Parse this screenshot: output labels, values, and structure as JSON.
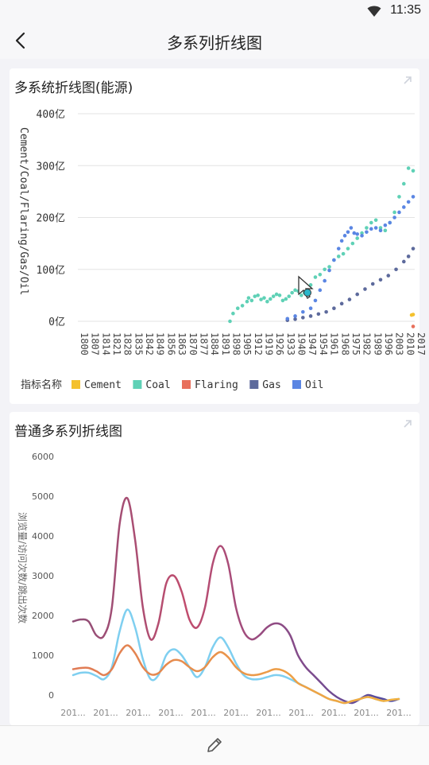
{
  "status_bar": {
    "time": "11:35"
  },
  "app_bar": {
    "title": "多系列折线图"
  },
  "chart_data": [
    {
      "type": "scatter",
      "title": "多系统折线图(能源)",
      "ylabel": "Cement/Coal/Flaring/Gas/Oil",
      "ylim": [
        0,
        400
      ],
      "yticks": [
        "0亿",
        "100亿",
        "200亿",
        "300亿",
        "400亿"
      ],
      "yticks_values": [
        0,
        100,
        200,
        300,
        400
      ],
      "x_ticks": [
        "1800",
        "1807",
        "1814",
        "1821",
        "1828",
        "1835",
        "1842",
        "1849",
        "1856",
        "1863",
        "1870",
        "1877",
        "1884",
        "1891",
        "1898",
        "1905",
        "1912",
        "1919",
        "1926",
        "1933",
        "1940",
        "1947",
        "1954",
        "1961",
        "1968",
        "1975",
        "1982",
        "1989",
        "1996",
        "2003",
        "2010",
        "2017"
      ],
      "xlim": [
        1800,
        2017
      ],
      "legend_title": "指标名称",
      "legend_position": "bottom-left",
      "colors": {
        "Cement": "#f4c12e",
        "Coal": "#5fd1b6",
        "Flaring": "#e8705c",
        "Gas": "#5d6a9c",
        "Oil": "#5b86e3"
      },
      "series": [
        {
          "name": "Cement",
          "x": [
            2015,
            2016
          ],
          "y": [
            12,
            13
          ]
        },
        {
          "name": "Coal",
          "x": [
            1898,
            1900,
            1903,
            1906,
            1909,
            1910,
            1912,
            1914,
            1916,
            1918,
            1920,
            1922,
            1924,
            1926,
            1928,
            1930,
            1932,
            1934,
            1936,
            1938,
            1940,
            1942,
            1944,
            1946,
            1948,
            1950,
            1953,
            1956,
            1959,
            1962,
            1965,
            1968,
            1971,
            1974,
            1977,
            1980,
            1983,
            1986,
            1989,
            1992,
            1995,
            1998,
            2001,
            2004,
            2007,
            2010,
            2013,
            2016
          ],
          "y": [
            0,
            15,
            25,
            30,
            38,
            45,
            40,
            48,
            50,
            42,
            45,
            38,
            43,
            48,
            52,
            50,
            40,
            43,
            48,
            55,
            60,
            58,
            50,
            55,
            65,
            70,
            85,
            90,
            100,
            105,
            118,
            125,
            130,
            140,
            150,
            160,
            170,
            180,
            190,
            195,
            180,
            175,
            190,
            210,
            240,
            265,
            295,
            290
          ]
        },
        {
          "name": "Flaring",
          "x": [
            2016
          ],
          "y": [
            -10
          ]
        },
        {
          "name": "Gas",
          "x": [
            1935,
            1940,
            1945,
            1950,
            1955,
            1960,
            1965,
            1970,
            1975,
            1980,
            1985,
            1990,
            1995,
            2000,
            2005,
            2010,
            2013,
            2016
          ],
          "y": [
            2,
            4,
            7,
            10,
            14,
            18,
            25,
            34,
            42,
            52,
            62,
            72,
            80,
            88,
            100,
            115,
            125,
            140
          ]
        },
        {
          "name": "Oil",
          "x": [
            1935,
            1940,
            1945,
            1950,
            1953,
            1956,
            1959,
            1962,
            1965,
            1968,
            1970,
            1972,
            1974,
            1976,
            1978,
            1980,
            1983,
            1986,
            1989,
            1992,
            1995,
            1998,
            2001,
            2004,
            2007,
            2010,
            2013,
            2016
          ],
          "y": [
            5,
            10,
            18,
            25,
            40,
            60,
            78,
            98,
            118,
            140,
            155,
            165,
            172,
            180,
            170,
            168,
            165,
            172,
            178,
            180,
            175,
            185,
            190,
            200,
            210,
            220,
            230,
            240
          ]
        }
      ]
    },
    {
      "type": "line",
      "title": "普通多系列折线图",
      "ylabel": "浏览量/访问次数/跳出次数",
      "ylim": [
        0,
        6000
      ],
      "yticks": [
        "0",
        "1000",
        "2000",
        "3000",
        "4000",
        "5000",
        "6000"
      ],
      "yticks_values": [
        0,
        1000,
        2000,
        3000,
        4000,
        5000,
        6000
      ],
      "categories": [
        "201...",
        "201...",
        "201...",
        "201...",
        "201...",
        "201...",
        "201...",
        "201...",
        "201...",
        "201...",
        "201...",
        "201...",
        "201...",
        "201...",
        "201...",
        "201...",
        "201...",
        "201...",
        "201...",
        "201...",
        "201...",
        "201...",
        "201...",
        "201...",
        "201...",
        "201...",
        "201...",
        "201...",
        "201...",
        "201...",
        "201...",
        "201...",
        "201...",
        "201...",
        "201...",
        "201...",
        "201...",
        "201...",
        "201...",
        "201...",
        "201...",
        "201...",
        "201..."
      ],
      "x_tick_labels": [
        "201...",
        "201...",
        "201...",
        "201...",
        "201...",
        "201...",
        "201...",
        "201...",
        "201...",
        "201...",
        "201..."
      ],
      "series": [
        {
          "name": "浏览量",
          "color_start": "#c14d6e",
          "color_end": "#4b4aa3",
          "values": [
            1850,
            1900,
            1850,
            1500,
            1500,
            2200,
            4300,
            4950,
            3900,
            2200,
            1400,
            1800,
            2800,
            3000,
            2600,
            1900,
            1700,
            2200,
            3300,
            3750,
            3300,
            2200,
            1600,
            1400,
            1500,
            1700,
            1800,
            1750,
            1500,
            1000,
            700,
            500,
            300,
            100,
            -50,
            -150,
            -200,
            -100,
            0,
            -50,
            -100,
            -150,
            -100
          ]
        },
        {
          "name": "访问次数",
          "color": "#7fcff0",
          "values": [
            500,
            560,
            560,
            480,
            400,
            700,
            1600,
            2150,
            1700,
            900,
            400,
            500,
            1000,
            1150,
            1000,
            700,
            450,
            700,
            1200,
            1450,
            1200,
            800,
            500,
            400,
            400,
            450,
            500,
            480,
            400,
            300,
            200,
            100,
            0,
            -100,
            -150,
            -200,
            -150,
            -100,
            -50,
            -100,
            -150,
            -120,
            -100
          ]
        },
        {
          "name": "跳出次数",
          "color_start": "#e07a55",
          "color_end": "#f4b23e",
          "values": [
            650,
            680,
            680,
            600,
            500,
            650,
            1050,
            1250,
            1050,
            700,
            520,
            550,
            760,
            880,
            850,
            700,
            600,
            700,
            950,
            1080,
            950,
            700,
            550,
            500,
            520,
            580,
            650,
            620,
            500,
            300,
            200,
            100,
            0,
            -100,
            -150,
            -200,
            -150,
            -100,
            -50,
            -100,
            -150,
            -120,
            -100
          ]
        }
      ]
    }
  ]
}
